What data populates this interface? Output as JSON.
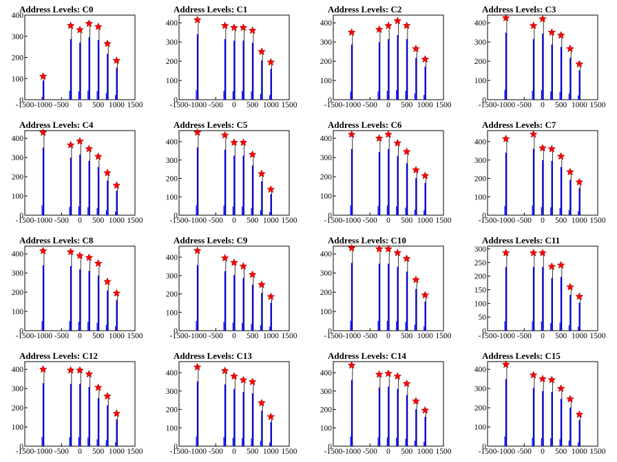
{
  "chart_data": [
    {
      "type": "bar",
      "title": "Address Levels: C0",
      "xlim": [
        -1500,
        1500
      ],
      "ylim": [
        0,
        400
      ],
      "yticks": [
        0,
        100,
        200,
        300,
        400
      ],
      "xticks": [
        -1500,
        -1000,
        -500,
        0,
        500,
        1000,
        1500
      ],
      "peaks": [
        {
          "x": -1000,
          "y": 110
        },
        {
          "x": -250,
          "y": 350
        },
        {
          "x": 0,
          "y": 330
        },
        {
          "x": 250,
          "y": 360
        },
        {
          "x": 500,
          "y": 345
        },
        {
          "x": 750,
          "y": 265
        },
        {
          "x": 1000,
          "y": 185
        }
      ]
    },
    {
      "type": "bar",
      "title": "Address Levels: C1",
      "xlim": [
        -1500,
        1500
      ],
      "ylim": [
        0,
        440
      ],
      "yticks": [
        0,
        100,
        200,
        300,
        400
      ],
      "xticks": [
        -1500,
        -1000,
        -500,
        0,
        500,
        1000,
        1500
      ],
      "peaks": [
        {
          "x": -1000,
          "y": 415
        },
        {
          "x": -250,
          "y": 385
        },
        {
          "x": 0,
          "y": 375
        },
        {
          "x": 250,
          "y": 375
        },
        {
          "x": 500,
          "y": 360
        },
        {
          "x": 750,
          "y": 250
        },
        {
          "x": 1000,
          "y": 195
        }
      ]
    },
    {
      "type": "bar",
      "title": "Address Levels: C2",
      "xlim": [
        -1500,
        1500
      ],
      "ylim": [
        0,
        440
      ],
      "yticks": [
        0,
        100,
        200,
        300,
        400
      ],
      "xticks": [
        -1500,
        -1000,
        -500,
        0,
        500,
        1000,
        1500
      ],
      "peaks": [
        {
          "x": -1000,
          "y": 350
        },
        {
          "x": -250,
          "y": 365
        },
        {
          "x": 0,
          "y": 385
        },
        {
          "x": 250,
          "y": 410
        },
        {
          "x": 500,
          "y": 385
        },
        {
          "x": 750,
          "y": 265
        },
        {
          "x": 1000,
          "y": 210
        }
      ]
    },
    {
      "type": "bar",
      "title": "Address Levels: C3",
      "xlim": [
        -1500,
        1500
      ],
      "ylim": [
        0,
        440
      ],
      "yticks": [
        0,
        100,
        200,
        300,
        400
      ],
      "xticks": [
        -1500,
        -1000,
        -500,
        0,
        500,
        1000,
        1500
      ],
      "peaks": [
        {
          "x": -1000,
          "y": 425
        },
        {
          "x": -250,
          "y": 385
        },
        {
          "x": 0,
          "y": 420
        },
        {
          "x": 250,
          "y": 350
        },
        {
          "x": 500,
          "y": 335
        },
        {
          "x": 750,
          "y": 265
        },
        {
          "x": 1000,
          "y": 185
        }
      ]
    },
    {
      "type": "bar",
      "title": "Address Levels: C4",
      "xlim": [
        -1500,
        1500
      ],
      "ylim": [
        0,
        440
      ],
      "yticks": [
        0,
        100,
        200,
        300,
        400
      ],
      "xticks": [
        -1500,
        -1000,
        -500,
        0,
        500,
        1000,
        1500
      ],
      "peaks": [
        {
          "x": -1000,
          "y": 430
        },
        {
          "x": -250,
          "y": 365
        },
        {
          "x": 0,
          "y": 385
        },
        {
          "x": 250,
          "y": 345
        },
        {
          "x": 500,
          "y": 305
        },
        {
          "x": 750,
          "y": 220
        },
        {
          "x": 1000,
          "y": 155
        }
      ]
    },
    {
      "type": "bar",
      "title": "Address Levels: C5",
      "xlim": [
        -1500,
        1500
      ],
      "ylim": [
        0,
        460
      ],
      "yticks": [
        0,
        100,
        200,
        300,
        400
      ],
      "xticks": [
        -1500,
        -1000,
        -500,
        0,
        500,
        1000,
        1500
      ],
      "peaks": [
        {
          "x": -1000,
          "y": 450
        },
        {
          "x": -250,
          "y": 435
        },
        {
          "x": 0,
          "y": 395
        },
        {
          "x": 250,
          "y": 395
        },
        {
          "x": 500,
          "y": 330
        },
        {
          "x": 750,
          "y": 225
        },
        {
          "x": 1000,
          "y": 140
        }
      ]
    },
    {
      "type": "bar",
      "title": "Address Levels: C6",
      "xlim": [
        -1500,
        1500
      ],
      "ylim": [
        0,
        440
      ],
      "yticks": [
        0,
        100,
        200,
        300,
        400
      ],
      "xticks": [
        -1500,
        -1000,
        -500,
        0,
        500,
        1000,
        1500
      ],
      "peaks": [
        {
          "x": -1000,
          "y": 420
        },
        {
          "x": -250,
          "y": 400
        },
        {
          "x": 0,
          "y": 420
        },
        {
          "x": 250,
          "y": 375
        },
        {
          "x": 500,
          "y": 330
        },
        {
          "x": 750,
          "y": 235
        },
        {
          "x": 1000,
          "y": 205
        }
      ]
    },
    {
      "type": "bar",
      "title": "Address Levels: C7",
      "xlim": [
        -1500,
        1500
      ],
      "ylim": [
        0,
        460
      ],
      "yticks": [
        0,
        100,
        200,
        300,
        400
      ],
      "xticks": [
        -1500,
        -1000,
        -500,
        0,
        500,
        1000,
        1500
      ],
      "peaks": [
        {
          "x": -1000,
          "y": 415
        },
        {
          "x": -250,
          "y": 440
        },
        {
          "x": 0,
          "y": 365
        },
        {
          "x": 250,
          "y": 360
        },
        {
          "x": 500,
          "y": 320
        },
        {
          "x": 750,
          "y": 235
        },
        {
          "x": 1000,
          "y": 180
        }
      ]
    },
    {
      "type": "bar",
      "title": "Address Levels: C8",
      "xlim": [
        -1500,
        1500
      ],
      "ylim": [
        0,
        440
      ],
      "yticks": [
        0,
        100,
        200,
        300,
        400
      ],
      "xticks": [
        -1500,
        -1000,
        -500,
        0,
        500,
        1000,
        1500
      ],
      "peaks": [
        {
          "x": -1000,
          "y": 415
        },
        {
          "x": -250,
          "y": 410
        },
        {
          "x": 0,
          "y": 390
        },
        {
          "x": 250,
          "y": 380
        },
        {
          "x": 500,
          "y": 350
        },
        {
          "x": 750,
          "y": 255
        },
        {
          "x": 1000,
          "y": 195
        }
      ]
    },
    {
      "type": "bar",
      "title": "Address Levels: C9",
      "xlim": [
        -1500,
        1500
      ],
      "ylim": [
        0,
        460
      ],
      "yticks": [
        0,
        100,
        200,
        300,
        400
      ],
      "xticks": [
        -1500,
        -1000,
        -500,
        0,
        500,
        1000,
        1500
      ],
      "peaks": [
        {
          "x": -1000,
          "y": 435
        },
        {
          "x": -250,
          "y": 395
        },
        {
          "x": 0,
          "y": 370
        },
        {
          "x": 250,
          "y": 350
        },
        {
          "x": 500,
          "y": 305
        },
        {
          "x": 750,
          "y": 250
        },
        {
          "x": 1000,
          "y": 185
        }
      ]
    },
    {
      "type": "bar",
      "title": "Address Levels: C10",
      "xlim": [
        -1500,
        1500
      ],
      "ylim": [
        0,
        440
      ],
      "yticks": [
        0,
        100,
        200,
        300,
        400
      ],
      "xticks": [
        -1500,
        -1000,
        -500,
        0,
        500,
        1000,
        1500
      ],
      "peaks": [
        {
          "x": -1000,
          "y": 430
        },
        {
          "x": -250,
          "y": 425
        },
        {
          "x": 0,
          "y": 425
        },
        {
          "x": 250,
          "y": 405
        },
        {
          "x": 500,
          "y": 375
        },
        {
          "x": 750,
          "y": 265
        },
        {
          "x": 1000,
          "y": 185
        }
      ]
    },
    {
      "type": "bar",
      "title": "Address Levels: C11",
      "xlim": [
        -1500,
        1500
      ],
      "ylim": [
        0,
        310
      ],
      "yticks": [
        0,
        50,
        100,
        150,
        200,
        250,
        300
      ],
      "xticks": [
        -1500,
        -1000,
        -500,
        0,
        500,
        1000,
        1500
      ],
      "peaks": [
        {
          "x": -1000,
          "y": 285
        },
        {
          "x": -250,
          "y": 285
        },
        {
          "x": 0,
          "y": 285
        },
        {
          "x": 250,
          "y": 235
        },
        {
          "x": 500,
          "y": 240
        },
        {
          "x": 750,
          "y": 160
        },
        {
          "x": 1000,
          "y": 125
        }
      ]
    },
    {
      "type": "bar",
      "title": "Address Levels: C12",
      "xlim": [
        -1500,
        1500
      ],
      "ylim": [
        0,
        440
      ],
      "yticks": [
        0,
        100,
        200,
        300,
        400
      ],
      "xticks": [
        -1500,
        -1000,
        -500,
        0,
        500,
        1000,
        1500
      ],
      "peaks": [
        {
          "x": -1000,
          "y": 400
        },
        {
          "x": -250,
          "y": 395
        },
        {
          "x": 0,
          "y": 395
        },
        {
          "x": 250,
          "y": 375
        },
        {
          "x": 500,
          "y": 305
        },
        {
          "x": 750,
          "y": 260
        },
        {
          "x": 1000,
          "y": 170
        }
      ]
    },
    {
      "type": "bar",
      "title": "Address Levels: C13",
      "xlim": [
        -1500,
        1500
      ],
      "ylim": [
        0,
        460
      ],
      "yticks": [
        0,
        100,
        200,
        300,
        400
      ],
      "xticks": [
        -1500,
        -1000,
        -500,
        0,
        500,
        1000,
        1500
      ],
      "peaks": [
        {
          "x": -1000,
          "y": 430
        },
        {
          "x": -250,
          "y": 410
        },
        {
          "x": 0,
          "y": 380
        },
        {
          "x": 250,
          "y": 360
        },
        {
          "x": 500,
          "y": 350
        },
        {
          "x": 750,
          "y": 235
        },
        {
          "x": 1000,
          "y": 160
        }
      ]
    },
    {
      "type": "bar",
      "title": "Address Levels: C14",
      "xlim": [
        -1500,
        1500
      ],
      "ylim": [
        0,
        460
      ],
      "yticks": [
        0,
        100,
        200,
        300,
        400
      ],
      "xticks": [
        -1500,
        -1000,
        -500,
        0,
        500,
        1000,
        1500
      ],
      "peaks": [
        {
          "x": -1000,
          "y": 440
        },
        {
          "x": -250,
          "y": 390
        },
        {
          "x": 0,
          "y": 395
        },
        {
          "x": 250,
          "y": 380
        },
        {
          "x": 500,
          "y": 340
        },
        {
          "x": 750,
          "y": 245
        },
        {
          "x": 1000,
          "y": 195
        }
      ]
    },
    {
      "type": "bar",
      "title": "Address Levels: C15",
      "xlim": [
        -1500,
        1500
      ],
      "ylim": [
        0,
        440
      ],
      "yticks": [
        0,
        100,
        200,
        300,
        400
      ],
      "xticks": [
        -1500,
        -1000,
        -500,
        0,
        500,
        1000,
        1500
      ],
      "peaks": [
        {
          "x": -1000,
          "y": 425
        },
        {
          "x": -250,
          "y": 370
        },
        {
          "x": 0,
          "y": 350
        },
        {
          "x": 250,
          "y": 345
        },
        {
          "x": 500,
          "y": 300
        },
        {
          "x": 750,
          "y": 245
        },
        {
          "x": 1000,
          "y": 165
        }
      ]
    }
  ],
  "colors": {
    "bar": "#0000ff",
    "tail": "#000000",
    "marker": "#ff0000",
    "marker_edge": "#8b0000",
    "axis": "#000000"
  },
  "marker_shape": "star"
}
